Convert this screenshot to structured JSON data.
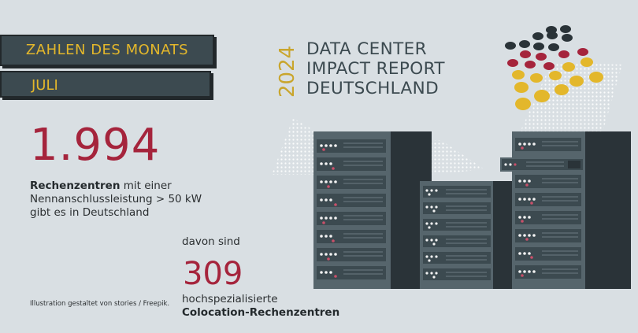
{
  "header": {
    "title": "ZAHLEN DES MONATS",
    "month": "JULI"
  },
  "stat_main": {
    "value": "1.994",
    "label_bold": "Rechenzentren",
    "label_rest": " mit einer Nennanschlussleistung > 50 kW gibt es in Deutschland"
  },
  "stat_sub": {
    "intro": "davon sind",
    "value": "309",
    "line1": "hochspezialisierte",
    "line2": "Colocation-Rechenzentren"
  },
  "report": {
    "year": "2024",
    "line1": "DATA CENTER",
    "line2": "IMPACT REPORT",
    "line3": "DEUTSCHLAND"
  },
  "credit": "Illustration gestaltet von stories / Freepik.",
  "colors": {
    "navy": "#3c4a50",
    "gold": "#e3b72b",
    "crimson": "#a5243c",
    "black": "#2a3338",
    "bg": "#d9dfe3"
  },
  "icons": [
    "flag-dot-cluster",
    "server-rack-illustration"
  ]
}
